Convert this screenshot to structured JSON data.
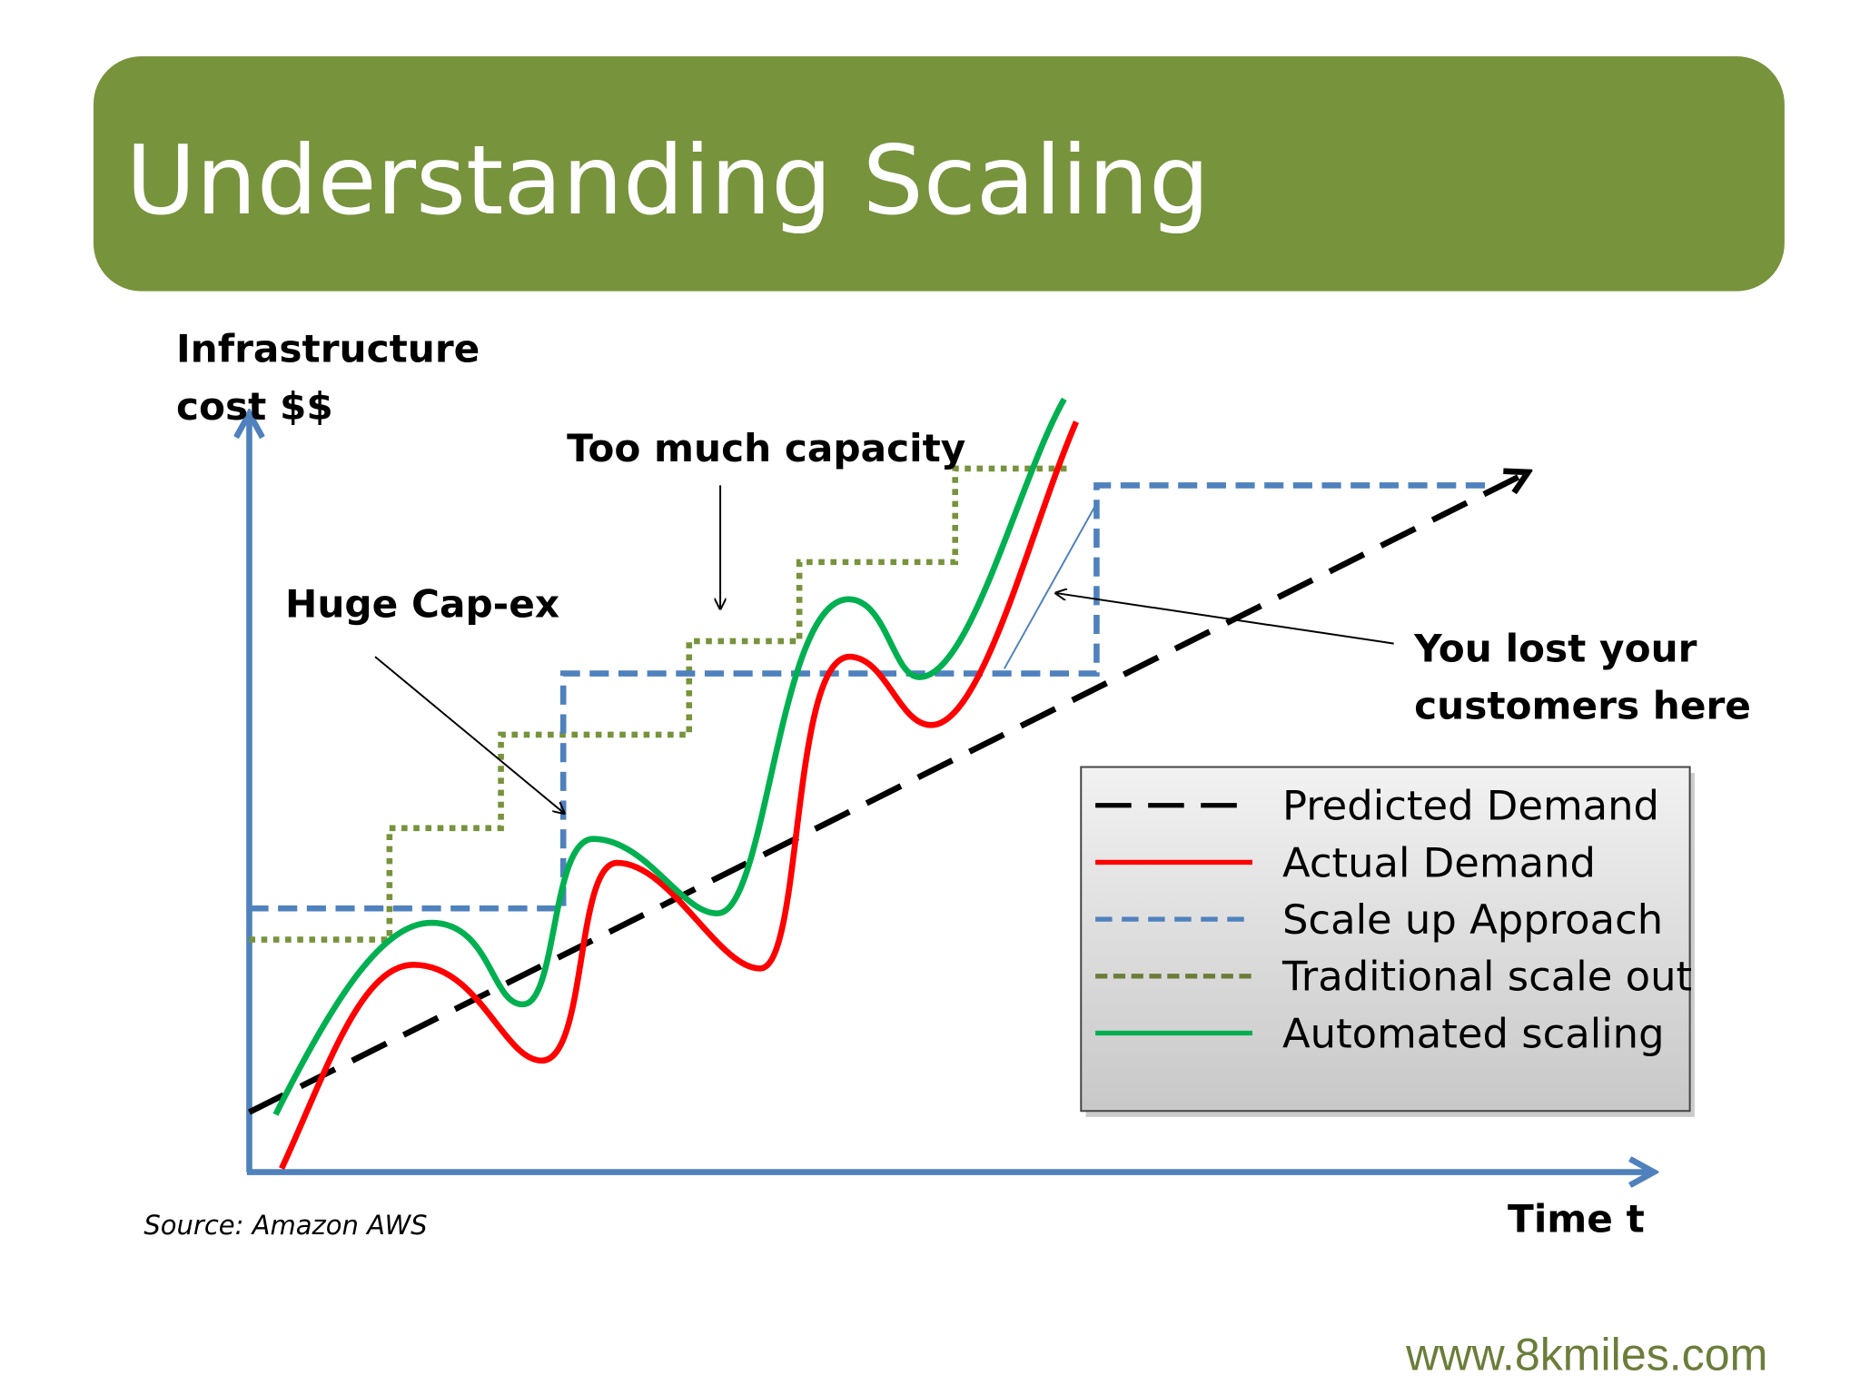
{
  "header": {
    "title": "Understanding Scaling"
  },
  "axes": {
    "y_label": [
      "Infrastructure",
      "cost $$"
    ],
    "x_label": "Time t"
  },
  "annotations": {
    "capex": "Huge Cap-ex",
    "capacity": "Too much capacity",
    "lost": [
      "You lost your",
      "customers here"
    ]
  },
  "legend": [
    {
      "name": "Predicted Demand",
      "color": "#000000"
    },
    {
      "name": "Actual Demand",
      "color": "#ff0000"
    },
    {
      "name": "Scale up Approach",
      "color": "#4f81bd"
    },
    {
      "name": "Traditional scale out",
      "color": "#6b7d3a"
    },
    {
      "name": "Automated scaling",
      "color": "#00b050"
    }
  ],
  "source": "Source: Amazon AWS",
  "website": "www.8kmiles.com"
}
